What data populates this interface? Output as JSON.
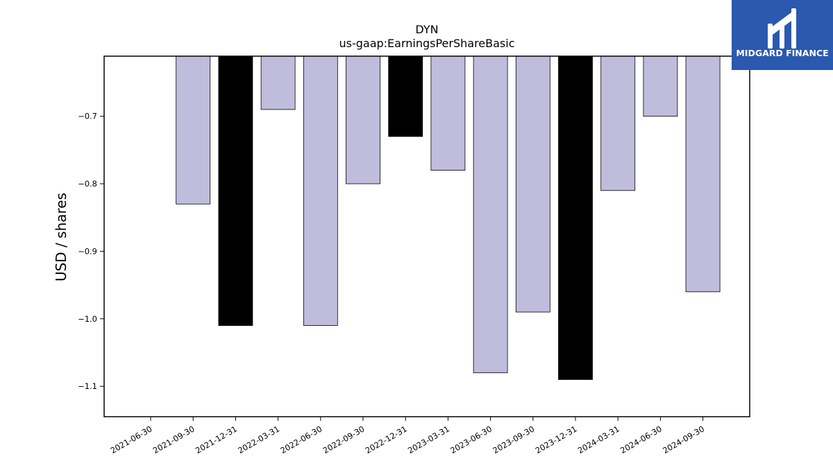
{
  "chart_data": {
    "type": "bar",
    "title": "DYN",
    "subtitle": "us-gaap:EarningsPerShareBasic",
    "xlabel": "",
    "ylabel": "USD / shares",
    "categories": [
      "2021-06-30",
      "2021-09-30",
      "2021-12-31",
      "2022-03-31",
      "2022-06-30",
      "2022-09-30",
      "2022-12-31",
      "2023-03-31",
      "2023-06-30",
      "2023-09-30",
      "2023-12-31",
      "2024-03-31",
      "2024-06-30",
      "2024-09-30"
    ],
    "values": [
      null,
      -0.83,
      -1.01,
      -0.69,
      -1.01,
      -0.8,
      -0.73,
      -0.78,
      -1.08,
      -0.99,
      -1.09,
      -0.81,
      -0.7,
      -0.96
    ],
    "bar_colors": [
      "#bfbcdc",
      "#bfbcdc",
      "#000000",
      "#bfbcdc",
      "#bfbcdc",
      "#bfbcdc",
      "#000000",
      "#bfbcdc",
      "#bfbcdc",
      "#bfbcdc",
      "#000000",
      "#bfbcdc",
      "#bfbcdc",
      "#bfbcdc"
    ],
    "ylim": [
      -1.145,
      -0.611
    ],
    "yticks": [
      -0.7,
      -0.8,
      -0.9,
      -1.0,
      -1.1
    ],
    "ytick_labels": [
      "−0.7",
      "−0.8",
      "−0.9",
      "−1.0",
      "−1.1"
    ],
    "grid": false,
    "bars_extend_from_top": true
  },
  "logo": {
    "text": "MIDGARD FINANCE",
    "background": "#2b59b0"
  }
}
